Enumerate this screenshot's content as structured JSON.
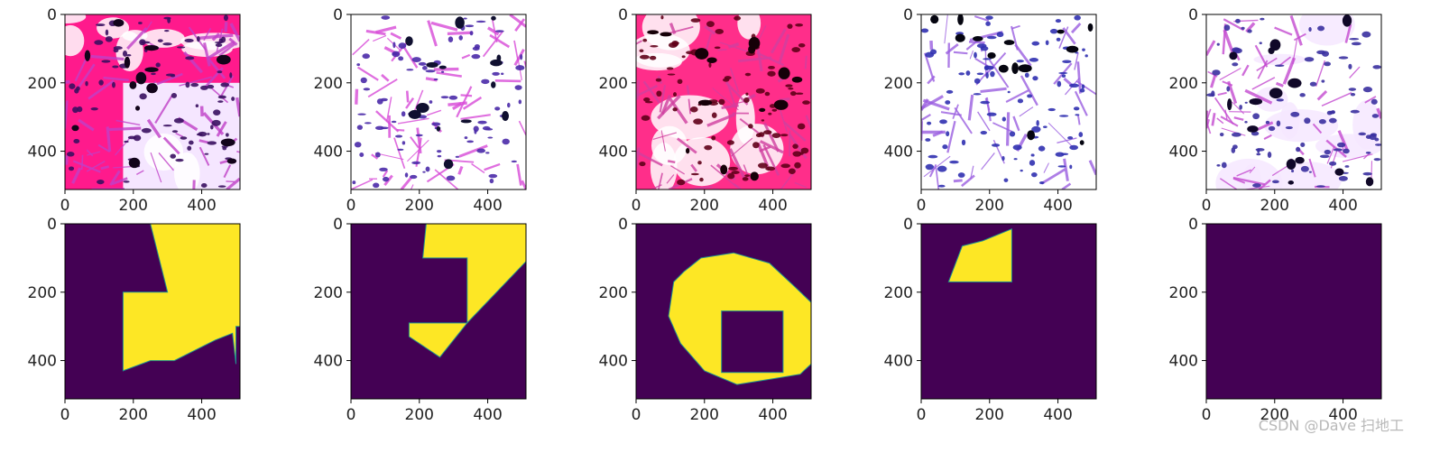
{
  "chart_data": {
    "type": "image-grid",
    "rows": 2,
    "cols": 5,
    "extent": [
      0,
      512
    ],
    "ticks": [
      0,
      200,
      400
    ],
    "tick_labels": [
      "0",
      "200",
      "400"
    ],
    "mask_colors": {
      "background": "#440154",
      "foreground": "#fde725",
      "edge": "#21918c"
    },
    "panels": [
      {
        "row": 0,
        "col": 0,
        "kind": "tissue-image",
        "palette": {
          "base": "#ff1a8c",
          "light": "#ffffff",
          "mid": "#c040c8",
          "nucleus": "#3a1060",
          "dark": "#12041a"
        },
        "background_value": [
          0,
          0,
          512,
          512
        ],
        "white_region": [
          170,
          200,
          512,
          512
        ]
      },
      {
        "row": 0,
        "col": 1,
        "kind": "tissue-image",
        "palette": {
          "base": "#ffffff",
          "light": "#ffffff",
          "mid": "#d84ad8",
          "nucleus": "#4a2aa8",
          "dark": "#101030"
        }
      },
      {
        "row": 0,
        "col": 2,
        "kind": "tissue-image",
        "palette": {
          "base": "#ff2e8a",
          "light": "#ffffff",
          "mid": "#d040a0",
          "nucleus": "#600018",
          "dark": "#160008"
        }
      },
      {
        "row": 0,
        "col": 3,
        "kind": "tissue-image",
        "palette": {
          "base": "#ffffff",
          "light": "#ffffff",
          "mid": "#9a5ee0",
          "nucleus": "#3030b0",
          "dark": "#050510"
        }
      },
      {
        "row": 0,
        "col": 4,
        "kind": "tissue-image",
        "palette": {
          "base": "#ffffff",
          "light": "#f6e8ff",
          "mid": "#c44ad0",
          "nucleus": "#3a30a0",
          "dark": "#100828"
        }
      },
      {
        "row": 1,
        "col": 0,
        "kind": "mask",
        "polygons": [
          {
            "points": [
              [
                250,
                0
              ],
              [
                512,
                0
              ],
              [
                512,
                300
              ],
              [
                500,
                300
              ],
              [
                500,
                410
              ],
              [
                490,
                320
              ],
              [
                440,
                340
              ],
              [
                320,
                400
              ],
              [
                250,
                400
              ],
              [
                170,
                430
              ],
              [
                170,
                200
              ],
              [
                300,
                200
              ]
            ]
          }
        ]
      },
      {
        "row": 1,
        "col": 1,
        "kind": "mask",
        "polygons": [
          {
            "points": [
              [
                220,
                0
              ],
              [
                512,
                0
              ],
              [
                512,
                110
              ],
              [
                340,
                290
              ],
              [
                340,
                100
              ],
              [
                210,
                100
              ]
            ]
          },
          {
            "points": [
              [
                170,
                290
              ],
              [
                340,
                290
              ],
              [
                260,
                390
              ],
              [
                170,
                330
              ]
            ]
          }
        ]
      },
      {
        "row": 1,
        "col": 2,
        "kind": "mask",
        "polygons": [
          {
            "points": [
              [
                140,
                140
              ],
              [
                190,
                100
              ],
              [
                285,
                85
              ],
              [
                390,
                115
              ],
              [
                460,
                180
              ],
              [
                512,
                230
              ],
              [
                512,
                410
              ],
              [
                480,
                440
              ],
              [
                390,
                455
              ],
              [
                295,
                470
              ],
              [
                200,
                430
              ],
              [
                130,
                350
              ],
              [
                95,
                270
              ],
              [
                110,
                170
              ]
            ]
          }
        ],
        "holes": [
          {
            "points": [
              [
                250,
                255
              ],
              [
                430,
                255
              ],
              [
                430,
                435
              ],
              [
                250,
                435
              ]
            ]
          }
        ]
      },
      {
        "row": 1,
        "col": 3,
        "kind": "mask",
        "polygons": [
          {
            "points": [
              [
                80,
                170
              ],
              [
                120,
                65
              ],
              [
                180,
                50
              ],
              [
                265,
                15
              ],
              [
                265,
                170
              ]
            ]
          }
        ]
      },
      {
        "row": 1,
        "col": 4,
        "kind": "mask",
        "polygons": []
      }
    ]
  },
  "watermark": "CSDN @Dave 扫地工"
}
